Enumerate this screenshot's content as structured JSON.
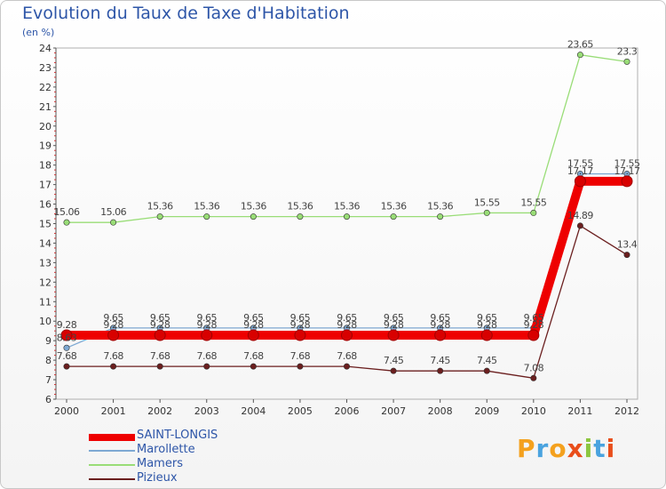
{
  "chart_data": {
    "type": "line",
    "title": "Evolution du Taux de Taxe d'Habitation",
    "subtitle": "(en %)",
    "categories": [
      "2000",
      "2001",
      "2002",
      "2003",
      "2004",
      "2005",
      "2006",
      "2007",
      "2008",
      "2009",
      "2010",
      "2011",
      "2012"
    ],
    "ylim": [
      6,
      24
    ],
    "yticks": [
      6,
      7,
      8,
      9,
      10,
      11,
      12,
      13,
      14,
      15,
      16,
      17,
      18,
      19,
      20,
      21,
      22,
      23,
      24
    ],
    "grid": false,
    "series": [
      {
        "name": "Pizieux",
        "color": "#6b1f1f",
        "values": [
          7.68,
          7.68,
          7.68,
          7.68,
          7.68,
          7.68,
          7.68,
          7.45,
          7.45,
          7.45,
          7.08,
          14.89,
          13.4
        ],
        "labels": [
          "7.68",
          "7.68",
          "7.68",
          "7.68",
          "7.68",
          "7.68",
          "7.68",
          "7.45",
          "7.45",
          "7.45",
          "7.08",
          "14.89",
          "13.4"
        ]
      },
      {
        "name": "Mamers",
        "color": "#99dd77",
        "values": [
          15.06,
          15.06,
          15.36,
          15.36,
          15.36,
          15.36,
          15.36,
          15.36,
          15.36,
          15.55,
          15.55,
          23.65,
          23.3
        ],
        "labels": [
          "15.06",
          "15.06",
          "15.36",
          "15.36",
          "15.36",
          "15.36",
          "15.36",
          "15.36",
          "15.36",
          "15.55",
          "15.55",
          "23.65",
          "23.3"
        ]
      },
      {
        "name": "Marollette",
        "color": "#7ea9d3",
        "values": [
          8.63,
          9.65,
          9.65,
          9.65,
          9.65,
          9.65,
          9.65,
          9.65,
          9.65,
          9.65,
          9.65,
          17.55,
          17.55
        ],
        "labels": [
          "8.63",
          "9.65",
          "9.65",
          "9.65",
          "9.65",
          "9.65",
          "9.65",
          "9.65",
          "9.65",
          "9.65",
          "9.65",
          "17.55",
          "17.55"
        ]
      },
      {
        "name": "SAINT-LONGIS",
        "color": "#ee0000",
        "values": [
          9.28,
          9.28,
          9.28,
          9.28,
          9.28,
          9.28,
          9.28,
          9.28,
          9.28,
          9.28,
          9.28,
          17.17,
          17.17
        ],
        "labels": [
          "9.28",
          "9.28",
          "9.28",
          "9.28",
          "9.28",
          "9.28",
          "9.28",
          "9.28",
          "9.28",
          "9.28",
          "9.28",
          "17.17",
          "17.17"
        ]
      }
    ],
    "legend_order": [
      "SAINT-LONGIS",
      "Marollette",
      "Mamers",
      "Pizieux"
    ]
  },
  "legend": {
    "saint_longis": "SAINT-LONGIS",
    "marollette": "Marollette",
    "mamers": "Mamers",
    "pizieux": "Pizieux"
  },
  "logo": {
    "letters": [
      "P",
      "r",
      "o",
      "x",
      "i",
      "t",
      "i"
    ],
    "colors": [
      "#f4a11e",
      "#4aa3df",
      "#f4a11e",
      "#e94e1b",
      "#8cc63f",
      "#4aa3df",
      "#e94e1b"
    ]
  }
}
